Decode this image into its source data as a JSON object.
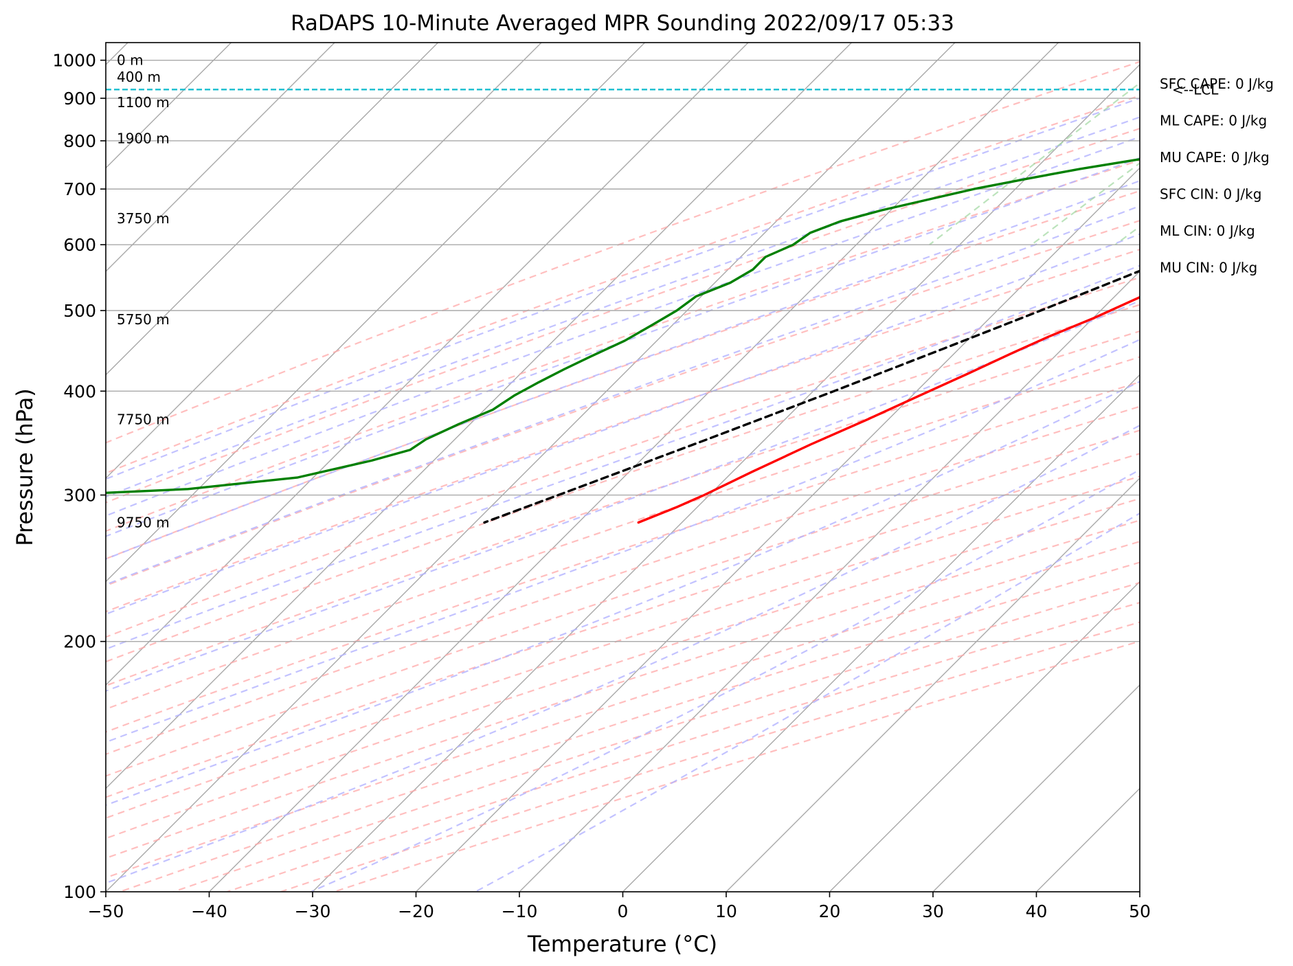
{
  "chart_data": {
    "type": "line",
    "title": "RaDAPS 10-Minute Averaged MPR Sounding 2022/09/17 05:33",
    "xlabel": "Temperature (°C)",
    "ylabel": "Pressure (hPa)",
    "xlim": [
      -50,
      50
    ],
    "ylim": [
      1050,
      100
    ],
    "y_scale": "log",
    "grid": true,
    "xticks": [
      -50,
      -40,
      -30,
      -20,
      -10,
      0,
      10,
      20,
      30,
      40,
      50
    ],
    "xtick_labels": [
      "−50",
      "−40",
      "−30",
      "−20",
      "−10",
      "0",
      "10",
      "20",
      "30",
      "40",
      "50"
    ],
    "yticks": [
      1000,
      900,
      800,
      700,
      600,
      500,
      400,
      300,
      200,
      100
    ],
    "ytick_labels": [
      "1000",
      "900",
      "800",
      "700",
      "600",
      "500",
      "400",
      "300",
      "200",
      "100"
    ],
    "height_labels": [
      {
        "p": 1000,
        "text": "0 m"
      },
      {
        "p": 955,
        "text": "400 m"
      },
      {
        "p": 890,
        "text": "1100 m"
      },
      {
        "p": 805,
        "text": "1900 m"
      },
      {
        "p": 645,
        "text": "3750 m"
      },
      {
        "p": 488,
        "text": "5750 m"
      },
      {
        "p": 370,
        "text": "7750 m"
      },
      {
        "p": 278,
        "text": "9750 m"
      }
    ],
    "stats": [
      "SFC CAPE: 0 J/kg",
      "ML CAPE: 0 J/kg",
      "MU CAPE: 0 J/kg",
      "SFC CIN: 0 J/kg",
      "ML CIN: 0 J/kg",
      "MU CIN: 0 J/kg"
    ],
    "lcl": {
      "p": 922,
      "label": "<--LCL",
      "color": "#17becf"
    },
    "series": [
      {
        "role": "temperature",
        "color": "#ff0000",
        "points": [
          [
            1000,
            21.2
          ],
          [
            990,
            23.4
          ],
          [
            975,
            24.3
          ],
          [
            960,
            24.1
          ],
          [
            945,
            23.3
          ],
          [
            925,
            21.9
          ],
          [
            905,
            19.5
          ],
          [
            880,
            17.0
          ],
          [
            860,
            15.6
          ],
          [
            835,
            14.3
          ],
          [
            815,
            12.9
          ],
          [
            795,
            11.3
          ],
          [
            765,
            9.3
          ],
          [
            730,
            7.0
          ],
          [
            700,
            5.3
          ],
          [
            660,
            2.4
          ],
          [
            620,
            -0.7
          ],
          [
            580,
            -3.1
          ],
          [
            545,
            -5.2
          ],
          [
            520,
            -7.4
          ],
          [
            490,
            -9.9
          ],
          [
            465,
            -12.5
          ],
          [
            445,
            -14.4
          ],
          [
            420,
            -16.7
          ],
          [
            395,
            -19.3
          ],
          [
            370,
            -22.0
          ],
          [
            345,
            -25.1
          ],
          [
            320,
            -28.1
          ],
          [
            300,
            -30.5
          ],
          [
            290,
            -32.0
          ],
          [
            278,
            -34.2
          ]
        ]
      },
      {
        "role": "dewpoint",
        "color": "#008000",
        "points": [
          [
            1000,
            12.7
          ],
          [
            990,
            10.6
          ],
          [
            975,
            7.8
          ],
          [
            960,
            6.4
          ],
          [
            950,
            6.4
          ],
          [
            940,
            5.4
          ],
          [
            930,
            5.5
          ],
          [
            920,
            5.8
          ],
          [
            905,
            5.4
          ],
          [
            890,
            4.2
          ],
          [
            875,
            2.7
          ],
          [
            860,
            0.2
          ],
          [
            840,
            -1.3
          ],
          [
            820,
            -2.8
          ],
          [
            800,
            -3.5
          ],
          [
            780,
            -12.9
          ],
          [
            760,
            -20.9
          ],
          [
            740,
            -25.7
          ],
          [
            720,
            -29.9
          ],
          [
            700,
            -34.0
          ],
          [
            680,
            -37.4
          ],
          [
            660,
            -40.9
          ],
          [
            640,
            -43.8
          ],
          [
            620,
            -45.6
          ],
          [
            600,
            -46.1
          ],
          [
            580,
            -47.6
          ],
          [
            560,
            -47.6
          ],
          [
            540,
            -48.5
          ],
          [
            520,
            -50.5
          ],
          [
            500,
            -51.0
          ],
          [
            480,
            -52.0
          ],
          [
            460,
            -53.1
          ],
          [
            440,
            -54.9
          ],
          [
            425,
            -56.2
          ],
          [
            410,
            -57.4
          ],
          [
            395,
            -58.5
          ],
          [
            380,
            -59.2
          ],
          [
            365,
            -61.1
          ],
          [
            350,
            -62.8
          ],
          [
            340,
            -63.3
          ],
          [
            330,
            -66.0
          ],
          [
            315,
            -71.5
          ],
          [
            305,
            -81.0
          ],
          [
            300,
            -93.0
          ],
          [
            297,
            -107.0
          ]
        ]
      },
      {
        "role": "parcel",
        "color": "#000000",
        "points": [
          [
            1000,
            21.2
          ],
          [
            960,
            17.8
          ],
          [
            922,
            14.7
          ],
          [
            900,
            13.7
          ],
          [
            850,
            11.1
          ],
          [
            800,
            8.3
          ],
          [
            750,
            5.2
          ],
          [
            700,
            1.7
          ],
          [
            650,
            -2.1
          ],
          [
            600,
            -6.3
          ],
          [
            550,
            -10.8
          ],
          [
            500,
            -15.8
          ],
          [
            450,
            -21.5
          ],
          [
            400,
            -28.0
          ],
          [
            350,
            -35.6
          ],
          [
            300,
            -44.6
          ],
          [
            278,
            -49.1
          ]
        ]
      }
    ],
    "background_lines": {
      "isotherm_color": "#a9a9a9",
      "dry_adiabat_color": "#ffa8a8",
      "moist_adiabat_color": "#b3b3ff",
      "mixing_ratio_color": "#9fd79f"
    }
  }
}
